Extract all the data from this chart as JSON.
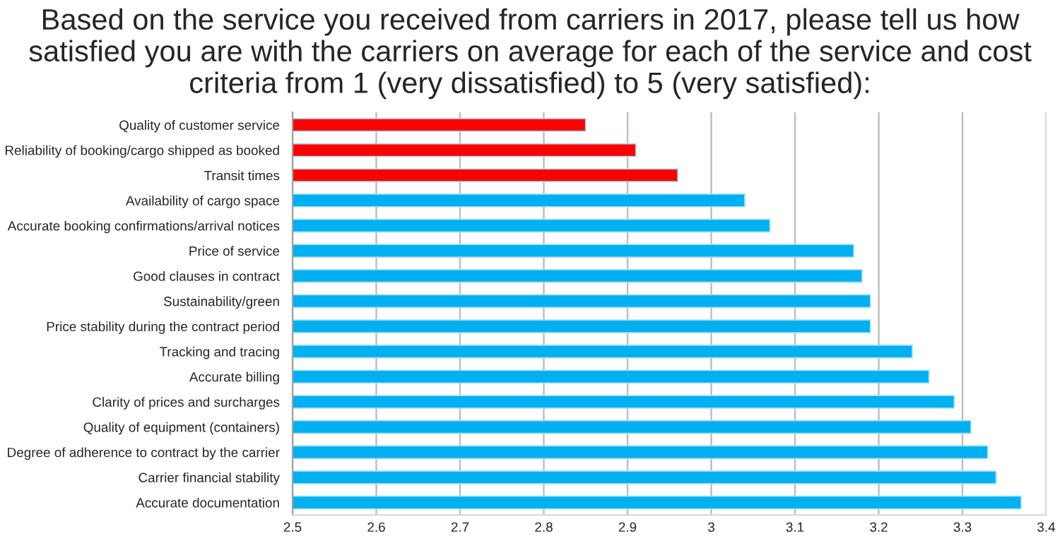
{
  "chart_data": {
    "type": "bar",
    "orientation": "horizontal",
    "title": "Based on the service you received from carriers in 2017, please tell us how satisfied you are with the carriers on average for each of the service and cost criteria from 1 (very dissatisfied) to 5 (very satisfied):",
    "categories": [
      "Quality of customer service",
      "Reliability of booking/cargo shipped as booked",
      "Transit times",
      "Availability of cargo space",
      "Accurate booking confirmations/arrival notices",
      "Price of service",
      "Good clauses in contract",
      "Sustainability/green",
      "Price stability during the contract period",
      "Tracking and tracing",
      "Accurate billing",
      "Clarity of prices and surcharges",
      "Quality of equipment (containers)",
      "Degree of adherence to contract by the carrier",
      "Carrier financial stability",
      "Accurate documentation"
    ],
    "values": [
      2.85,
      2.91,
      2.96,
      3.04,
      3.07,
      3.17,
      3.18,
      3.19,
      3.19,
      3.24,
      3.26,
      3.29,
      3.31,
      3.33,
      3.34,
      3.37
    ],
    "colors": [
      "#ff0000",
      "#ff0000",
      "#ff0000",
      "#00b0f0",
      "#00b0f0",
      "#00b0f0",
      "#00b0f0",
      "#00b0f0",
      "#00b0f0",
      "#00b0f0",
      "#00b0f0",
      "#00b0f0",
      "#00b0f0",
      "#00b0f0",
      "#00b0f0",
      "#00b0f0"
    ],
    "xlim": [
      2.5,
      3.4
    ],
    "xticks": [
      2.5,
      2.6,
      2.7,
      2.8,
      2.9,
      3,
      3.1,
      3.2,
      3.3,
      3.4
    ],
    "grid": "x",
    "legend": false
  }
}
